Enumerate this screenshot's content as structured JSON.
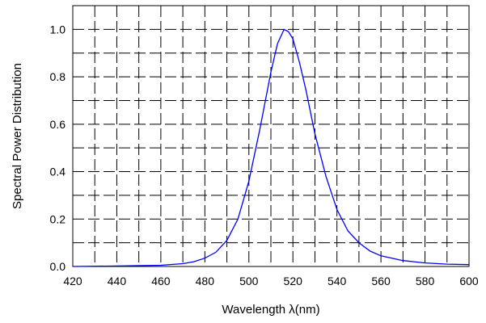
{
  "chart_data": {
    "type": "line",
    "title": "",
    "xlabel": "Wavelength λ(nm)",
    "ylabel": "Spectral Power Distribution",
    "xlim": [
      420,
      600
    ],
    "ylim": [
      0.0,
      1.1
    ],
    "xticks": [
      420,
      440,
      460,
      480,
      500,
      520,
      540,
      560,
      580,
      600
    ],
    "yticks": [
      0.0,
      0.2,
      0.4,
      0.6,
      0.8,
      1.0
    ],
    "xtick_labels": [
      "420",
      "440",
      "460",
      "480",
      "500",
      "520",
      "540",
      "560",
      "580",
      "600"
    ],
    "ytick_labels": [
      "0.0",
      "0.2",
      "0.4",
      "0.6",
      "0.8",
      "1.0"
    ],
    "grid": true,
    "legend": "none",
    "series": [
      {
        "color": "#0000ff",
        "x": [
          420,
          440,
          460,
          470,
          475,
          480,
          485,
          490,
          495,
          500,
          505,
          510,
          513,
          516,
          518,
          520,
          523,
          526,
          530,
          535,
          540,
          545,
          550,
          555,
          560,
          570,
          580,
          590,
          600
        ],
        "y": [
          0.0,
          0.002,
          0.005,
          0.012,
          0.02,
          0.035,
          0.06,
          0.11,
          0.2,
          0.36,
          0.58,
          0.82,
          0.94,
          1.0,
          0.99,
          0.96,
          0.86,
          0.74,
          0.56,
          0.38,
          0.24,
          0.15,
          0.1,
          0.065,
          0.045,
          0.025,
          0.015,
          0.01,
          0.008
        ]
      }
    ]
  }
}
